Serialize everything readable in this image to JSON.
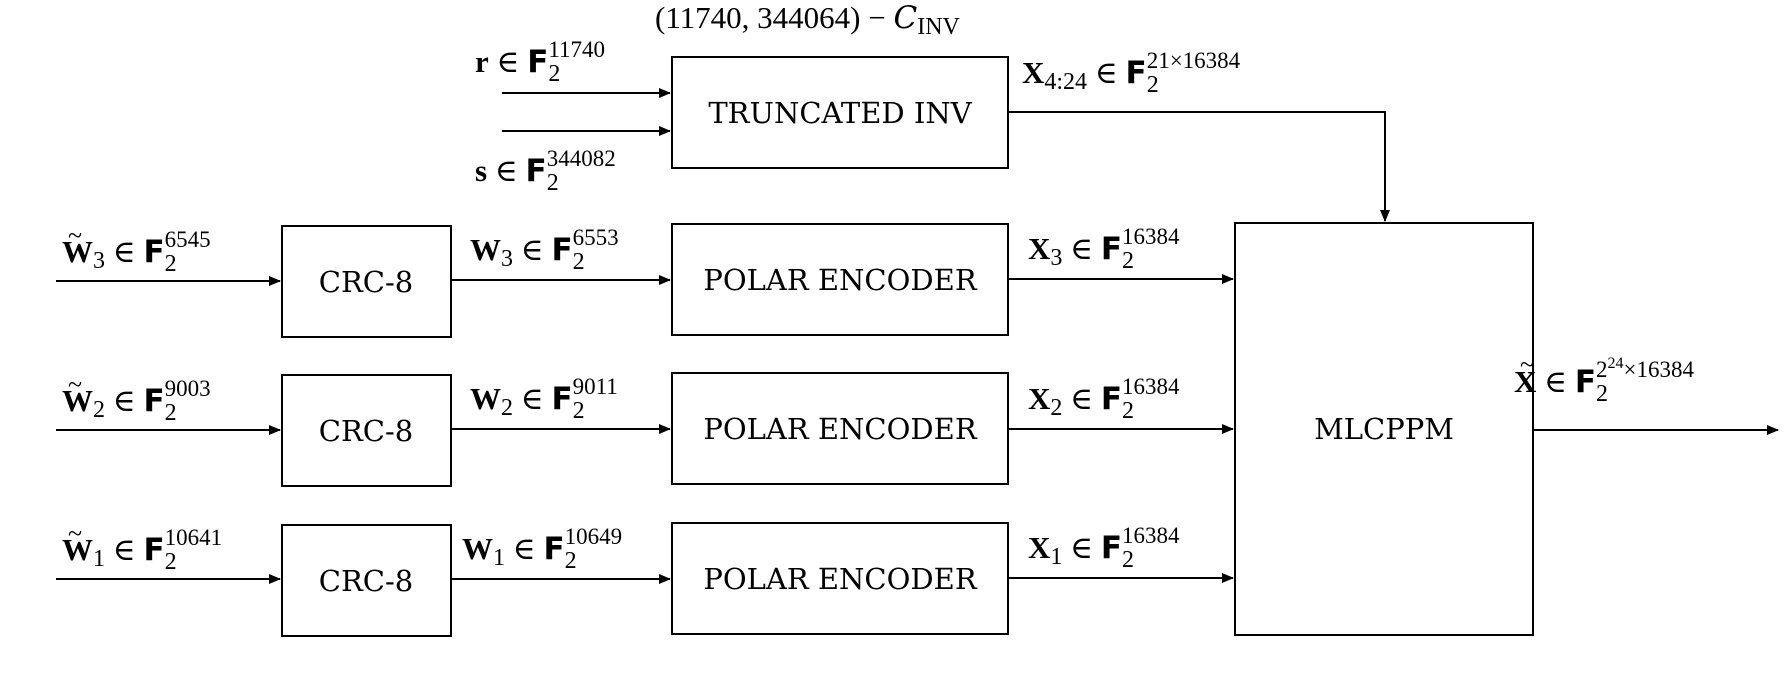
{
  "blocks": {
    "truncated_inv": "TRUNCATED INV",
    "crc3": "CRC-8",
    "crc2": "CRC-8",
    "crc1": "CRC-8",
    "polar3": "POLAR ENCODER",
    "polar2": "POLAR ENCODER",
    "polar1": "POLAR ENCODER",
    "mlcppm": "MLCPPM"
  },
  "labels": {
    "code": {
      "params": "(11740, 344064)",
      "minus": " − ",
      "sym": "C",
      "sub": "INV"
    },
    "r": {
      "sym": "r",
      "in": " ∈ ",
      "field": "F",
      "sub": "2",
      "sup": "11740"
    },
    "s": {
      "sym": "s",
      "in": " ∈ ",
      "field": "F",
      "sub": "2",
      "sup": "344082"
    },
    "x424": {
      "sym": "X",
      "sub": "4:24",
      "in": " ∈ ",
      "field": "F",
      "fsub": "2",
      "sup": "21×16384"
    },
    "wt3": {
      "sym": "W",
      "tilde": "~",
      "sub": "3",
      "in": " ∈ ",
      "field": "F",
      "fsub": "2",
      "sup": "6545"
    },
    "wt2": {
      "sym": "W",
      "tilde": "~",
      "sub": "2",
      "in": " ∈ ",
      "field": "F",
      "fsub": "2",
      "sup": "9003"
    },
    "wt1": {
      "sym": "W",
      "tilde": "~",
      "sub": "1",
      "in": " ∈ ",
      "field": "F",
      "fsub": "2",
      "sup": "10641"
    },
    "w3": {
      "sym": "W",
      "sub": "3",
      "in": " ∈ ",
      "field": "F",
      "fsub": "2",
      "sup": "6553"
    },
    "w2": {
      "sym": "W",
      "sub": "2",
      "in": " ∈ ",
      "field": "F",
      "fsub": "2",
      "sup": "9011"
    },
    "w1": {
      "sym": "W",
      "sub": "1",
      "in": " ∈ ",
      "field": "F",
      "fsub": "2",
      "sup": "10649"
    },
    "x3": {
      "sym": "X",
      "sub": "3",
      "in": " ∈ ",
      "field": "F",
      "fsub": "2",
      "sup": "16384"
    },
    "x2": {
      "sym": "X",
      "sub": "2",
      "in": " ∈ ",
      "field": "F",
      "fsub": "2",
      "sup": "16384"
    },
    "x1": {
      "sym": "X",
      "sub": "1",
      "in": " ∈ ",
      "field": "F",
      "fsub": "2",
      "sup": "16384"
    },
    "xout": {
      "sym": "X",
      "tilde": "~",
      "in": " ∈ ",
      "field": "F",
      "fsub": "2",
      "supbase": "2",
      "supexp": "24",
      "suptail": "×16384"
    }
  }
}
